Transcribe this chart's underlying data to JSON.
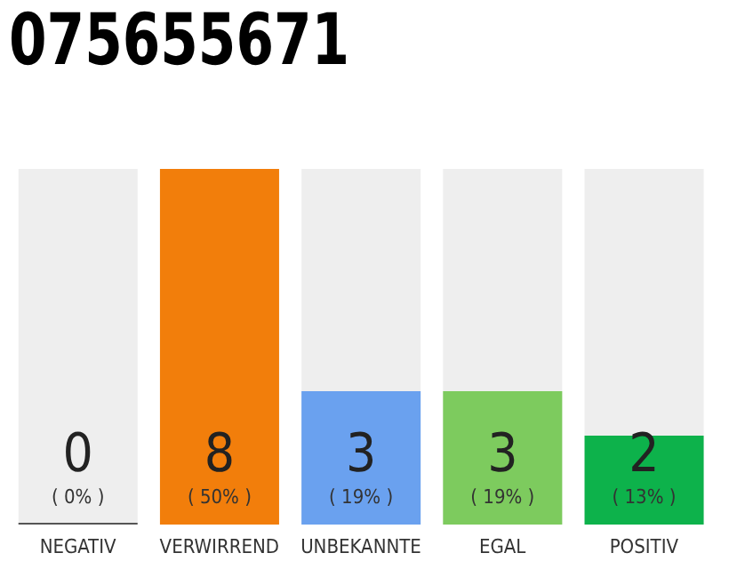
{
  "chart_data": {
    "type": "bar",
    "title": "075655671",
    "categories": [
      "NEGATIV",
      "VERWIRREND",
      "UNBEKANNTE",
      "EGAL",
      "POSITIV"
    ],
    "values": [
      0,
      8,
      3,
      3,
      2
    ],
    "colors": [
      "#555555",
      "#f27e0b",
      "#6aa1ef",
      "#7dcb5e",
      "#0db24b"
    ],
    "data_labels": true,
    "annotations": [
      "( 0% )",
      "( 50% )",
      "( 19% )",
      "( 19% )",
      "( 13% )"
    ]
  }
}
